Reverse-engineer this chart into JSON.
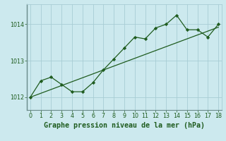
{
  "x": [
    0,
    1,
    2,
    3,
    4,
    5,
    6,
    7,
    8,
    9,
    10,
    11,
    12,
    13,
    14,
    15,
    16,
    17,
    18
  ],
  "y": [
    1012.0,
    1012.45,
    1012.55,
    1012.35,
    1012.15,
    1012.15,
    1012.4,
    1012.75,
    1013.05,
    1013.35,
    1013.65,
    1013.6,
    1013.9,
    1014.0,
    1014.25,
    1013.85,
    1013.85,
    1013.65,
    1014.0
  ],
  "trend_x": [
    0,
    18
  ],
  "trend_y": [
    1012.0,
    1013.92
  ],
  "bg_color": "#cce9ee",
  "line_color": "#1f5c1f",
  "marker_color": "#1f5c1f",
  "grid_color": "#a8cdd4",
  "tick_color": "#1f5c1f",
  "xlabel": "Graphe pression niveau de la mer (hPa)",
  "xlim": [
    -0.3,
    18.3
  ],
  "ylim": [
    1011.65,
    1014.55
  ],
  "yticks": [
    1012,
    1013,
    1014
  ],
  "xticks": [
    0,
    1,
    2,
    3,
    4,
    5,
    6,
    7,
    8,
    9,
    10,
    11,
    12,
    13,
    14,
    15,
    16,
    17,
    18
  ],
  "tick_fontsize": 5.8,
  "xlabel_fontsize": 7.2
}
